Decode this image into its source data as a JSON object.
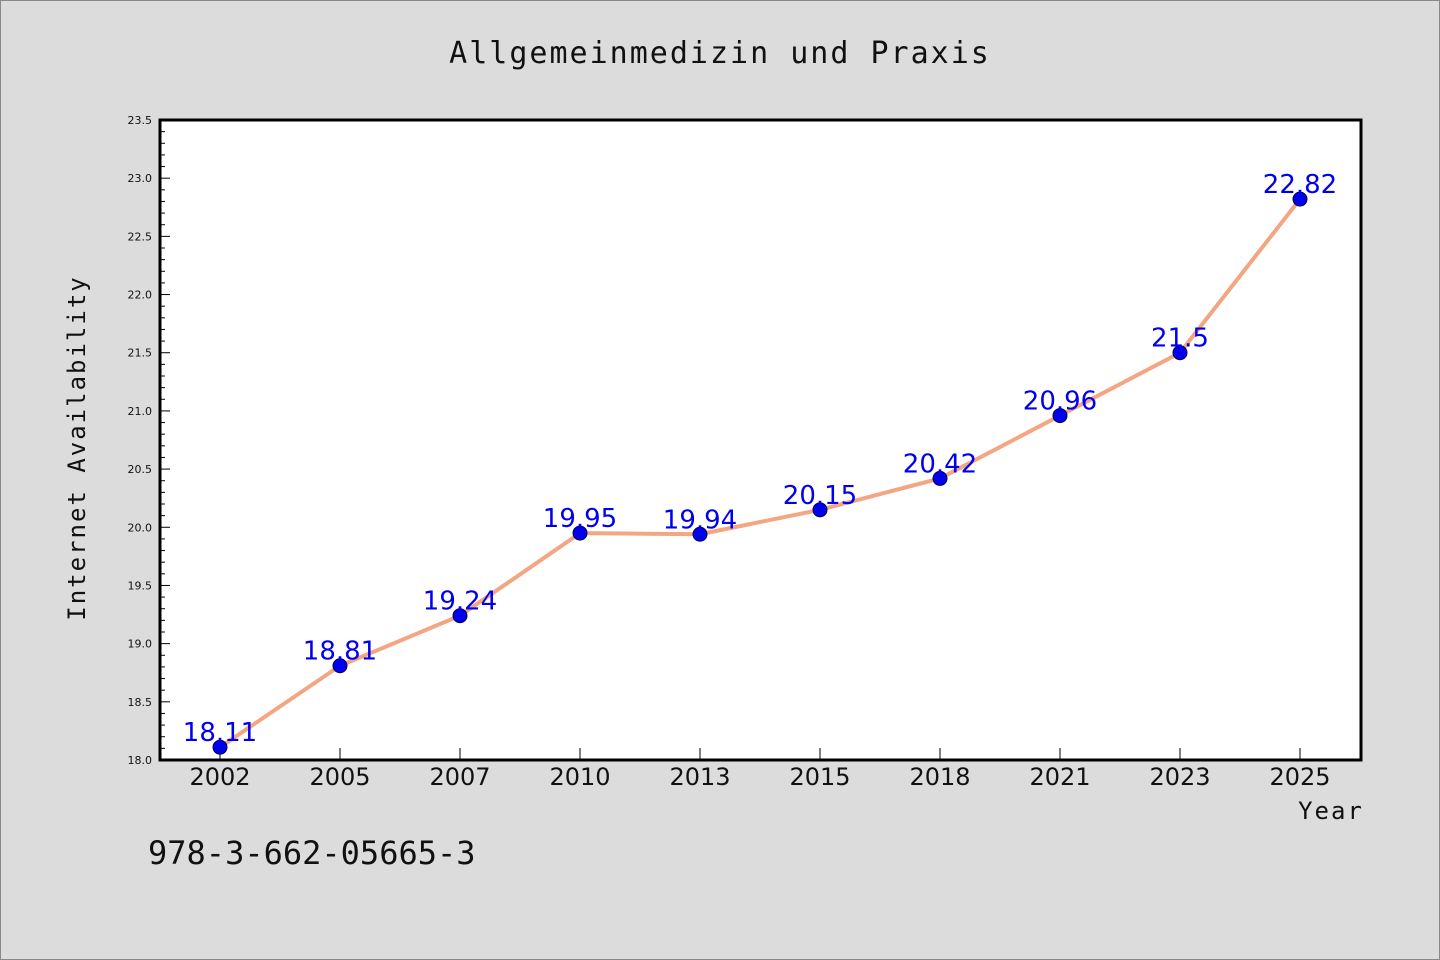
{
  "chart_data": {
    "type": "line",
    "title": "Allgemeinmedizin und Praxis",
    "xlabel": "Year",
    "ylabel": "Internet Availability",
    "categories": [
      "2002",
      "2005",
      "2007",
      "2010",
      "2013",
      "2015",
      "2018",
      "2021",
      "2023",
      "2025"
    ],
    "values": [
      18.11,
      18.81,
      19.24,
      19.95,
      19.94,
      20.15,
      20.42,
      20.96,
      21.5,
      22.82
    ],
    "data_labels": [
      "18.11",
      "18.81",
      "19.24",
      "19.95",
      "19.94",
      "20.15",
      "20.42",
      "20.96",
      "21.5",
      "22.82"
    ],
    "ylim": [
      18.0,
      23.5
    ],
    "yticks": [
      "18.0",
      "18.5",
      "19.0",
      "19.5",
      "20.0",
      "20.5",
      "21.0",
      "21.5",
      "22.0",
      "22.5",
      "23.0",
      "23.5"
    ],
    "grid": false,
    "line_color": "#f4a582",
    "marker_color": "#0000ee",
    "label_color": "#0000ee"
  },
  "footer": {
    "isbn": "978-3-662-05665-3"
  }
}
